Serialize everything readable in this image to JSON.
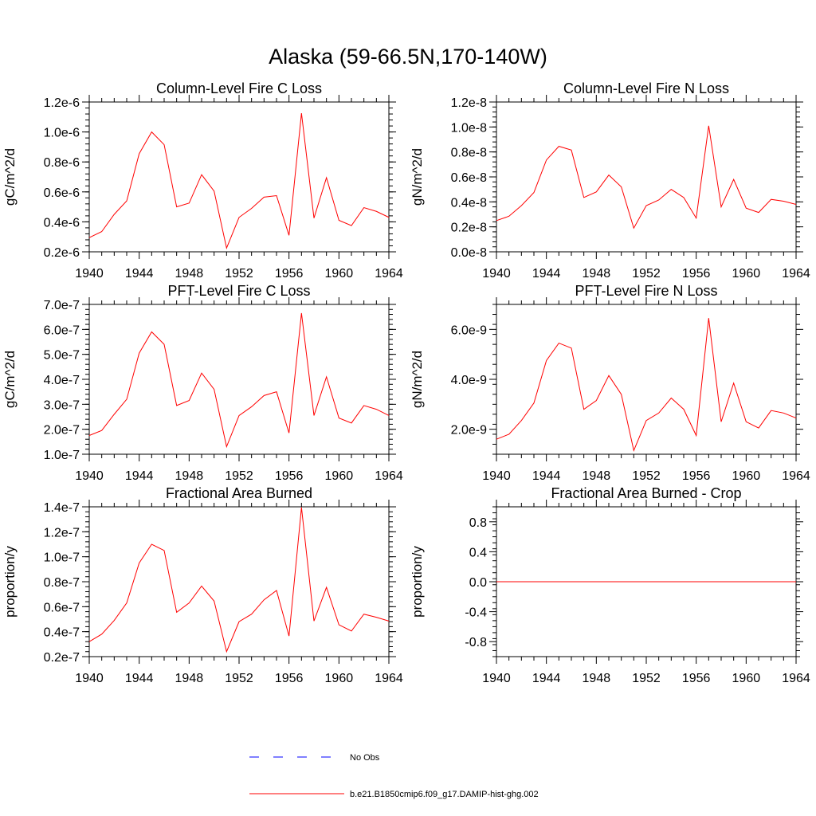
{
  "figure": {
    "title": "Alaska (59-66.5N,170-140W)"
  },
  "legend": {
    "items": [
      {
        "label": "No Obs",
        "color": "#0000ff",
        "style": "dashed"
      },
      {
        "label": "b.e21.B1850cmip6.f09_g17.DAMIP-hist-ghg.002",
        "color": "#ff0000",
        "style": "solid"
      }
    ]
  },
  "chart_data": [
    {
      "type": "line",
      "title": "Column-Level Fire C Loss",
      "ylabel": "gC/m^2/d",
      "xlabel": "",
      "xlim": [
        1940,
        1964
      ],
      "ylim": [
        2e-07,
        1.2e-06
      ],
      "xticks": [
        1940,
        1944,
        1948,
        1952,
        1956,
        1960,
        1964
      ],
      "yticks": [
        2e-07,
        4e-07,
        6e-07,
        8e-07,
        1e-06,
        1.2e-06
      ],
      "ytick_labels": [
        "0.2e-6",
        "0.4e-6",
        "0.6e-6",
        "0.8e-6",
        "1.0e-6",
        "1.2e-6"
      ],
      "x": [
        1940,
        1941,
        1942,
        1943,
        1944,
        1945,
        1946,
        1947,
        1948,
        1949,
        1950,
        1951,
        1952,
        1953,
        1954,
        1955,
        1956,
        1957,
        1958,
        1959,
        1960,
        1961,
        1962,
        1963,
        1964
      ],
      "series": [
        {
          "color": "#ff0000",
          "values": [
            2.95e-07,
            3.35e-07,
            4.5e-07,
            5.4e-07,
            8.55e-07,
            1e-06,
            9.15e-07,
            5e-07,
            5.25e-07,
            7.15e-07,
            6.05e-07,
            2.25e-07,
            4.3e-07,
            4.9e-07,
            5.65e-07,
            5.75e-07,
            3.1e-07,
            1.125e-06,
            4.25e-07,
            6.95e-07,
            4.1e-07,
            3.75e-07,
            4.95e-07,
            4.7e-07,
            4.3e-07
          ]
        }
      ]
    },
    {
      "type": "line",
      "title": "Column-Level Fire N Loss",
      "ylabel": "gN/m^2/d",
      "xlabel": "",
      "xlim": [
        1940,
        1964
      ],
      "ylim": [
        0.0,
        1.2e-08
      ],
      "xticks": [
        1940,
        1944,
        1948,
        1952,
        1956,
        1960,
        1964
      ],
      "yticks": [
        0.0,
        2e-09,
        4e-09,
        6e-09,
        8e-09,
        1e-08,
        1.2e-08
      ],
      "ytick_labels": [
        "0.0e-8",
        "0.2e-8",
        "0.4e-8",
        "0.6e-8",
        "0.8e-8",
        "1.0e-8",
        "1.2e-8"
      ],
      "x": [
        1940,
        1941,
        1942,
        1943,
        1944,
        1945,
        1946,
        1947,
        1948,
        1949,
        1950,
        1951,
        1952,
        1953,
        1954,
        1955,
        1956,
        1957,
        1958,
        1959,
        1960,
        1961,
        1962,
        1963,
        1964
      ],
      "series": [
        {
          "color": "#ff0000",
          "values": [
            2.5e-09,
            2.85e-09,
            3.7e-09,
            4.75e-09,
            7.35e-09,
            8.45e-09,
            8.15e-09,
            4.35e-09,
            4.8e-09,
            6.15e-09,
            5.2e-09,
            1.9e-09,
            3.7e-09,
            4.15e-09,
            5e-09,
            4.35e-09,
            2.7e-09,
            1.01e-08,
            3.6e-09,
            5.8e-09,
            3.5e-09,
            3.15e-09,
            4.2e-09,
            4.05e-09,
            3.8e-09
          ]
        }
      ]
    },
    {
      "type": "line",
      "title": "PFT-Level Fire C Loss",
      "ylabel": "gC/m^2/d",
      "xlabel": "",
      "xlim": [
        1940,
        1964
      ],
      "ylim": [
        1e-07,
        7e-07
      ],
      "xticks": [
        1940,
        1944,
        1948,
        1952,
        1956,
        1960,
        1964
      ],
      "yticks": [
        1e-07,
        2e-07,
        3e-07,
        4e-07,
        5e-07,
        6e-07,
        7e-07
      ],
      "ytick_labels": [
        "1.0e-7",
        "2.0e-7",
        "3.0e-7",
        "4.0e-7",
        "5.0e-7",
        "6.0e-7",
        "7.0e-7"
      ],
      "x": [
        1940,
        1941,
        1942,
        1943,
        1944,
        1945,
        1946,
        1947,
        1948,
        1949,
        1950,
        1951,
        1952,
        1953,
        1954,
        1955,
        1956,
        1957,
        1958,
        1959,
        1960,
        1961,
        1962,
        1963,
        1964
      ],
      "series": [
        {
          "color": "#ff0000",
          "values": [
            1.75e-07,
            1.95e-07,
            2.6e-07,
            3.2e-07,
            5.05e-07,
            5.9e-07,
            5.4e-07,
            2.95e-07,
            3.15e-07,
            4.25e-07,
            3.6e-07,
            1.3e-07,
            2.55e-07,
            2.9e-07,
            3.35e-07,
            3.5e-07,
            1.85e-07,
            6.65e-07,
            2.55e-07,
            4.1e-07,
            2.45e-07,
            2.25e-07,
            2.95e-07,
            2.8e-07,
            2.55e-07
          ]
        }
      ]
    },
    {
      "type": "line",
      "title": "PFT-Level Fire N Loss",
      "ylabel": "gN/m^2/d",
      "xlabel": "",
      "xlim": [
        1940,
        1964
      ],
      "ylim": [
        1e-09,
        7e-09
      ],
      "xticks": [
        1940,
        1944,
        1948,
        1952,
        1956,
        1960,
        1964
      ],
      "yticks": [
        2e-09,
        4e-09,
        6e-09
      ],
      "ytick_labels": [
        "2.0e-9",
        "4.0e-9",
        "6.0e-9"
      ],
      "x": [
        1940,
        1941,
        1942,
        1943,
        1944,
        1945,
        1946,
        1947,
        1948,
        1949,
        1950,
        1951,
        1952,
        1953,
        1954,
        1955,
        1956,
        1957,
        1958,
        1959,
        1960,
        1961,
        1962,
        1963,
        1964
      ],
      "series": [
        {
          "color": "#ff0000",
          "values": [
            1.6e-09,
            1.8e-09,
            2.35e-09,
            3.05e-09,
            4.75e-09,
            5.45e-09,
            5.25e-09,
            2.8e-09,
            3.15e-09,
            4.15e-09,
            3.4e-09,
            1.15e-09,
            2.35e-09,
            2.65e-09,
            3.25e-09,
            2.8e-09,
            1.75e-09,
            6.45e-09,
            2.3e-09,
            3.85e-09,
            2.3e-09,
            2.05e-09,
            2.75e-09,
            2.65e-09,
            2.45e-09
          ]
        }
      ]
    },
    {
      "type": "line",
      "title": "Fractional Area Burned",
      "ylabel": "proportion/y",
      "xlabel": "",
      "xlim": [
        1940,
        1964
      ],
      "ylim": [
        2e-08,
        1.4e-07
      ],
      "xticks": [
        1940,
        1944,
        1948,
        1952,
        1956,
        1960,
        1964
      ],
      "yticks": [
        2e-08,
        4e-08,
        6e-08,
        8e-08,
        1e-07,
        1.2e-07,
        1.4e-07
      ],
      "ytick_labels": [
        "0.2e-7",
        "0.4e-7",
        "0.6e-7",
        "0.8e-7",
        "1.0e-7",
        "1.2e-7",
        "1.4e-7"
      ],
      "x": [
        1940,
        1941,
        1942,
        1943,
        1944,
        1945,
        1946,
        1947,
        1948,
        1949,
        1950,
        1951,
        1952,
        1953,
        1954,
        1955,
        1956,
        1957,
        1958,
        1959,
        1960,
        1961,
        1962,
        1963,
        1964
      ],
      "series": [
        {
          "color": "#ff0000",
          "values": [
            3.2e-08,
            3.8e-08,
            4.9e-08,
            6.3e-08,
            9.5e-08,
            1.1e-07,
            1.05e-07,
            5.55e-08,
            6.3e-08,
            7.65e-08,
            6.45e-08,
            2.4e-08,
            4.8e-08,
            5.4e-08,
            6.55e-08,
            7.3e-08,
            3.65e-08,
            1.395e-07,
            4.85e-08,
            7.55e-08,
            4.55e-08,
            4.05e-08,
            5.4e-08,
            5.15e-08,
            4.85e-08
          ]
        }
      ]
    },
    {
      "type": "line",
      "title": "Fractional Area Burned - Crop",
      "ylabel": "proportion/y",
      "xlabel": "",
      "xlim": [
        1940,
        1964
      ],
      "ylim": [
        -1.0,
        1.0
      ],
      "xticks": [
        1940,
        1944,
        1948,
        1952,
        1956,
        1960,
        1964
      ],
      "yticks": [
        -0.8,
        -0.4,
        0.0,
        0.4,
        0.8
      ],
      "ytick_labels": [
        "-0.8",
        "-0.4",
        "0.0",
        "0.4",
        "0.8"
      ],
      "x": [
        1940,
        1941,
        1942,
        1943,
        1944,
        1945,
        1946,
        1947,
        1948,
        1949,
        1950,
        1951,
        1952,
        1953,
        1954,
        1955,
        1956,
        1957,
        1958,
        1959,
        1960,
        1961,
        1962,
        1963,
        1964
      ],
      "series": [
        {
          "color": "#ff0000",
          "values": [
            0,
            0,
            0,
            0,
            0,
            0,
            0,
            0,
            0,
            0,
            0,
            0,
            0,
            0,
            0,
            0,
            0,
            0,
            0,
            0,
            0,
            0,
            0,
            0,
            0
          ]
        }
      ]
    }
  ]
}
